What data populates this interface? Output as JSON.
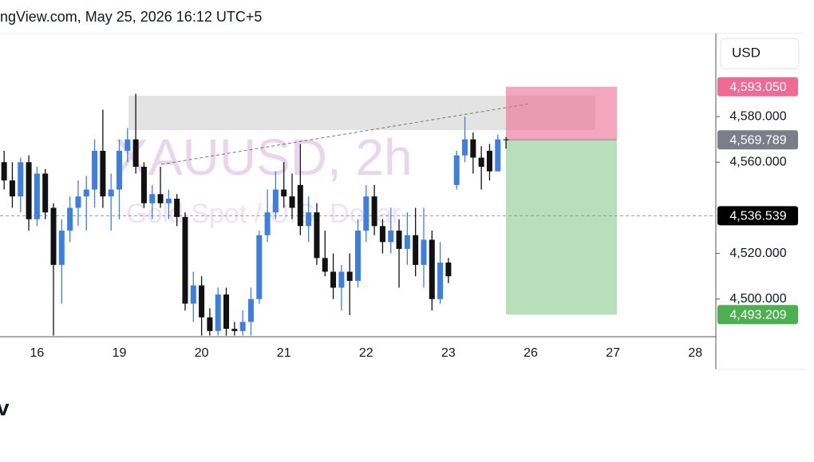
{
  "header": {
    "text": "ngView.com, May 25, 2026 16:12 UTC+5"
  },
  "currency_button": "USD",
  "footer_text": "v",
  "chart_data": {
    "type": "candlestick",
    "watermark": {
      "symbol": "XAUUSD, 2h",
      "description": "Gold Spot / U.S. Dollar"
    },
    "categories": [
      null,
      null,
      null,
      null,
      "16",
      null,
      null,
      null,
      null,
      null,
      null,
      null,
      null,
      null,
      "19",
      null,
      null,
      null,
      null,
      null,
      null,
      null,
      null,
      null,
      "20",
      null,
      null,
      null,
      null,
      null,
      null,
      null,
      null,
      null,
      "21",
      null,
      null,
      null,
      null,
      null,
      null,
      null,
      null,
      null,
      "22",
      null,
      null,
      null,
      null,
      null,
      null,
      null,
      null,
      null,
      "23",
      null,
      null,
      null,
      null,
      null,
      null,
      null,
      null,
      null,
      "26",
      null,
      null,
      null,
      null,
      null,
      null,
      null,
      null,
      null,
      "27",
      null,
      null,
      null,
      null,
      null,
      null,
      null,
      null,
      null,
      "28",
      null,
      null
    ],
    "open": [
      4560,
      4552,
      4545,
      4560,
      4535,
      4555,
      4540,
      4515,
      4530,
      4540,
      4545,
      4548,
      4565,
      4545,
      4548,
      4565,
      4570,
      4558,
      4542,
      4546,
      4542,
      4544,
      4536,
      4498,
      4506,
      4492,
      4486,
      4502,
      4487,
      4486,
      4490,
      4500,
      4528,
      4538,
      4548,
      4545,
      4550,
      4532,
      4538,
      4518,
      4512,
      4505,
      4512,
      4508,
      4530,
      4545,
      4532,
      4525,
      4530,
      4522,
      4528,
      4515,
      4526,
      4500,
      4516,
      4550,
      4563,
      4570,
      4562,
      4565,
      4556,
      4570,
      null,
      null,
      null,
      null,
      null,
      null,
      null,
      null,
      null,
      null,
      null,
      null,
      null,
      null,
      null,
      null,
      null,
      null,
      null,
      null,
      null,
      null,
      null,
      null,
      null
    ],
    "high": [
      4565,
      4560,
      4562,
      4563,
      4558,
      4557,
      4542,
      4535,
      4545,
      4552,
      4554,
      4570,
      4583,
      4555,
      4570,
      4575,
      4590,
      4560,
      4550,
      4558,
      4548,
      4546,
      4538,
      4512,
      4510,
      4496,
      4505,
      4505,
      4490,
      4495,
      4505,
      4530,
      4548,
      4556,
      4560,
      4555,
      4568,
      4545,
      4542,
      4530,
      4520,
      4515,
      4520,
      4535,
      4550,
      4550,
      4535,
      4540,
      4535,
      4538,
      4540,
      4540,
      4530,
      4525,
      4518,
      4565,
      4580,
      4573,
      4567,
      4568,
      4572,
      4571,
      null,
      null,
      null,
      null,
      null,
      null,
      null,
      null,
      null,
      null,
      null,
      null,
      null,
      null,
      null,
      null,
      null,
      null,
      null,
      null,
      null,
      null,
      null,
      null,
      null
    ],
    "low": [
      4548,
      4540,
      4538,
      4530,
      4532,
      4535,
      4484,
      4498,
      4525,
      4532,
      4530,
      4540,
      4540,
      4530,
      4535,
      4560,
      4555,
      4540,
      4535,
      4540,
      4535,
      4532,
      4495,
      4490,
      4484,
      4484,
      4484,
      4484,
      4484,
      4484,
      4484,
      4498,
      4525,
      4535,
      4540,
      4535,
      4528,
      4525,
      4515,
      4510,
      4500,
      4495,
      4493,
      4505,
      4525,
      4528,
      4520,
      4520,
      4505,
      4515,
      4510,
      4505,
      4495,
      4498,
      4507,
      4548,
      4560,
      4555,
      4548,
      4552,
      4556,
      4566,
      null,
      null,
      null,
      null,
      null,
      null,
      null,
      null,
      null,
      null,
      null,
      null,
      null,
      null,
      null,
      null,
      null,
      null,
      null,
      null,
      null,
      null,
      null,
      null,
      null
    ],
    "close": [
      4552,
      4545,
      4560,
      4535,
      4555,
      4538,
      4515,
      4530,
      4540,
      4545,
      4548,
      4565,
      4545,
      4548,
      4565,
      4570,
      4558,
      4542,
      4546,
      4542,
      4544,
      4536,
      4498,
      4506,
      4492,
      4486,
      4502,
      4487,
      4486,
      4490,
      4500,
      4528,
      4538,
      4548,
      4545,
      4540,
      4532,
      4538,
      4518,
      4512,
      4505,
      4512,
      4508,
      4530,
      4545,
      4532,
      4525,
      4530,
      4522,
      4528,
      4515,
      4526,
      4500,
      4516,
      4510,
      4563,
      4570,
      4562,
      4558,
      4556,
      4570,
      4569.789,
      null,
      null,
      null,
      null,
      null,
      null,
      null,
      null,
      null,
      null,
      null,
      null,
      null,
      null,
      null,
      null,
      null,
      null,
      null,
      null,
      null,
      null,
      null,
      null,
      null
    ],
    "up_color": "#3d7fe0",
    "down_color": "#111111",
    "ylim": [
      4483.5,
      4616.4
    ],
    "yticks": [
      {
        "value": 4500,
        "label": "4,500.000"
      },
      {
        "value": 4520,
        "label": "4,520.000"
      },
      {
        "value": 4560,
        "label": "4,560.000"
      },
      {
        "value": 4580,
        "label": "4,580.000"
      }
    ],
    "price_labels": [
      {
        "value": 4593.05,
        "label": "4,593.050",
        "color": "#ef6b94"
      },
      {
        "value": 4569.789,
        "label": "4,569.789",
        "color": "#7b7e88"
      },
      {
        "value": 4536.539,
        "label": "4,536.539",
        "color": "#000000"
      },
      {
        "value": 4493.209,
        "label": "4,493.209",
        "color": "#4caf50"
      }
    ]
  }
}
